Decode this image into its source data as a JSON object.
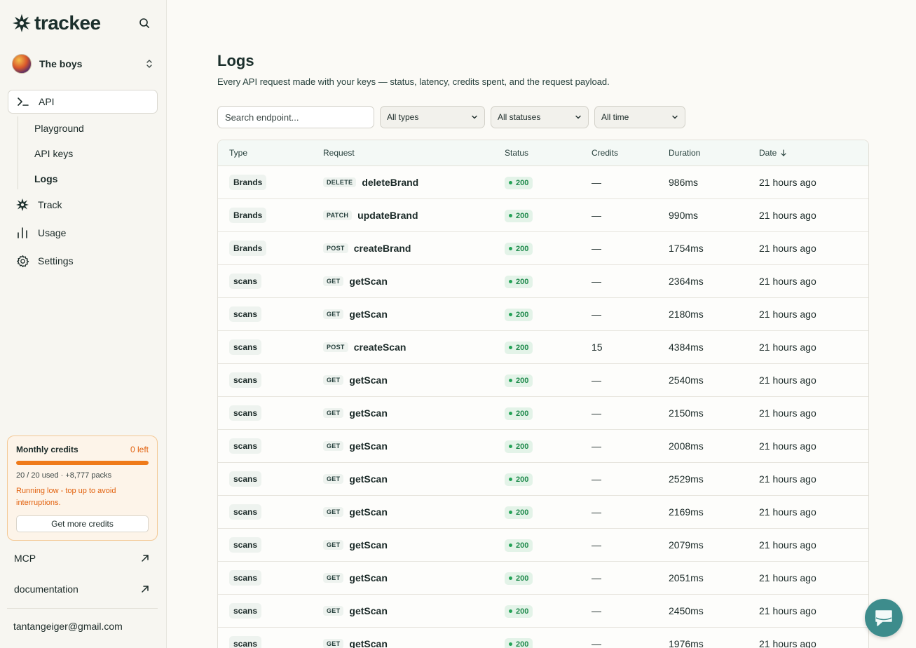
{
  "brand": {
    "name": "trackee"
  },
  "workspace": {
    "name": "The boys"
  },
  "nav": {
    "api": "API",
    "sub": [
      "Playground",
      "API keys",
      "Logs"
    ],
    "track": "Track",
    "usage": "Usage",
    "settings": "Settings"
  },
  "credits": {
    "title": "Monthly credits",
    "left": "0 left",
    "progress_fraction": 1.0,
    "used": "20 / 20 used · +8,777 packs",
    "warning": "Running low - top up to avoid interruptions.",
    "button": "Get more credits"
  },
  "links": {
    "mcp": "MCP",
    "docs": "documentation"
  },
  "user": {
    "email": "tantangeiger@gmail.com"
  },
  "page": {
    "title": "Logs",
    "subtitle": "Every API request made with your keys — status, latency, credits spent, and the request payload."
  },
  "filters": {
    "search_placeholder": "Search endpoint...",
    "type": "All types",
    "status": "All statuses",
    "time": "All time"
  },
  "table": {
    "headers": {
      "type": "Type",
      "request": "Request",
      "status": "Status",
      "credits": "Credits",
      "duration": "Duration",
      "date": "Date"
    },
    "rows": [
      {
        "type": "Brands",
        "method": "DELETE",
        "endpoint": "deleteBrand",
        "status": "200",
        "credits": "—",
        "duration": "986ms",
        "date": "21 hours ago"
      },
      {
        "type": "Brands",
        "method": "PATCH",
        "endpoint": "updateBrand",
        "status": "200",
        "credits": "—",
        "duration": "990ms",
        "date": "21 hours ago"
      },
      {
        "type": "Brands",
        "method": "POST",
        "endpoint": "createBrand",
        "status": "200",
        "credits": "—",
        "duration": "1754ms",
        "date": "21 hours ago"
      },
      {
        "type": "scans",
        "method": "GET",
        "endpoint": "getScan",
        "status": "200",
        "credits": "—",
        "duration": "2364ms",
        "date": "21 hours ago"
      },
      {
        "type": "scans",
        "method": "GET",
        "endpoint": "getScan",
        "status": "200",
        "credits": "—",
        "duration": "2180ms",
        "date": "21 hours ago"
      },
      {
        "type": "scans",
        "method": "POST",
        "endpoint": "createScan",
        "status": "200",
        "credits": "15",
        "duration": "4384ms",
        "date": "21 hours ago"
      },
      {
        "type": "scans",
        "method": "GET",
        "endpoint": "getScan",
        "status": "200",
        "credits": "—",
        "duration": "2540ms",
        "date": "21 hours ago"
      },
      {
        "type": "scans",
        "method": "GET",
        "endpoint": "getScan",
        "status": "200",
        "credits": "—",
        "duration": "2150ms",
        "date": "21 hours ago"
      },
      {
        "type": "scans",
        "method": "GET",
        "endpoint": "getScan",
        "status": "200",
        "credits": "—",
        "duration": "2008ms",
        "date": "21 hours ago"
      },
      {
        "type": "scans",
        "method": "GET",
        "endpoint": "getScan",
        "status": "200",
        "credits": "—",
        "duration": "2529ms",
        "date": "21 hours ago"
      },
      {
        "type": "scans",
        "method": "GET",
        "endpoint": "getScan",
        "status": "200",
        "credits": "—",
        "duration": "2169ms",
        "date": "21 hours ago"
      },
      {
        "type": "scans",
        "method": "GET",
        "endpoint": "getScan",
        "status": "200",
        "credits": "—",
        "duration": "2079ms",
        "date": "21 hours ago"
      },
      {
        "type": "scans",
        "method": "GET",
        "endpoint": "getScan",
        "status": "200",
        "credits": "—",
        "duration": "2051ms",
        "date": "21 hours ago"
      },
      {
        "type": "scans",
        "method": "GET",
        "endpoint": "getScan",
        "status": "200",
        "credits": "—",
        "duration": "2450ms",
        "date": "21 hours ago"
      },
      {
        "type": "scans",
        "method": "GET",
        "endpoint": "getScan",
        "status": "200",
        "credits": "—",
        "duration": "1976ms",
        "date": "21 hours ago"
      }
    ]
  },
  "colors": {
    "accent": "#ef7a19",
    "status_ok": "#1f8a4c",
    "chat": "#3d8c8c"
  },
  "icons": {
    "brand": "trackee-star-logo-icon",
    "search": "search-icon",
    "workspace": "chevron-up-down-icon",
    "api": "terminal-icon",
    "track": "star-burst-icon",
    "usage": "bar-chart-icon",
    "settings": "gear-icon",
    "external": "arrow-up-right-icon",
    "sort": "arrow-down-icon",
    "chat": "chat-bubble-icon"
  }
}
